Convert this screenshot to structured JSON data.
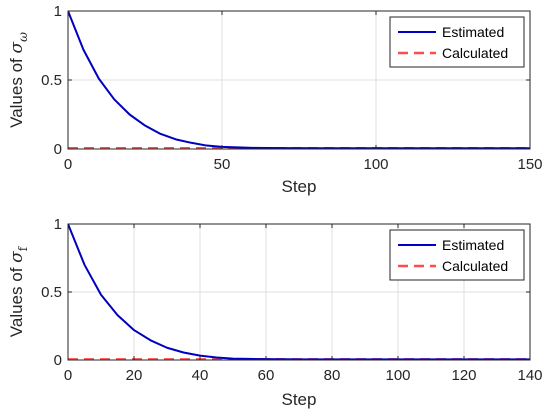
{
  "chart_data": [
    {
      "type": "line",
      "xlabel": "Step",
      "ylabel": {
        "prefix": "Values of ",
        "symbol": "σ",
        "subscript": "ω"
      },
      "xlim": [
        0,
        150
      ],
      "ylim": [
        0,
        1
      ],
      "xticks": [
        0,
        50,
        100,
        150
      ],
      "yticks": [
        0,
        0.5,
        1
      ],
      "xtick_labels": [
        "0",
        "50",
        "100",
        "150"
      ],
      "ytick_labels": [
        "0",
        "0.5",
        "1"
      ],
      "grid": true,
      "legend_position": "top-right",
      "series": [
        {
          "name": "Estimated",
          "style": "solid",
          "color": "#0000c0",
          "x": [
            0,
            5,
            10,
            15,
            20,
            25,
            30,
            35,
            40,
            45,
            50,
            60,
            70,
            80,
            90,
            100,
            110,
            120,
            130,
            140,
            150
          ],
          "y": [
            1.0,
            0.72,
            0.51,
            0.36,
            0.25,
            0.17,
            0.11,
            0.07,
            0.045,
            0.025,
            0.015,
            0.008,
            0.006,
            0.005,
            0.005,
            0.005,
            0.005,
            0.005,
            0.005,
            0.005,
            0.005
          ]
        },
        {
          "name": "Calculated",
          "style": "dashed",
          "color": "#ff4d4d",
          "x": [
            0,
            150
          ],
          "y": [
            0.005,
            0.005
          ]
        }
      ]
    },
    {
      "type": "line",
      "xlabel": "Step",
      "ylabel": {
        "prefix": "Values of ",
        "symbol": "σ",
        "subscript": "f"
      },
      "xlim": [
        0,
        140
      ],
      "ylim": [
        0,
        1
      ],
      "xticks": [
        0,
        20,
        40,
        60,
        80,
        100,
        120,
        140
      ],
      "yticks": [
        0,
        0.5,
        1
      ],
      "xtick_labels": [
        "0",
        "20",
        "40",
        "60",
        "80",
        "100",
        "120",
        "140"
      ],
      "ytick_labels": [
        "0",
        "0.5",
        "1"
      ],
      "grid": true,
      "legend_position": "top-right",
      "series": [
        {
          "name": "Estimated",
          "style": "solid",
          "color": "#0000c0",
          "x": [
            0,
            5,
            10,
            15,
            20,
            25,
            30,
            35,
            40,
            45,
            50,
            60,
            70,
            80,
            90,
            100,
            110,
            120,
            130,
            140
          ],
          "y": [
            1.0,
            0.7,
            0.48,
            0.33,
            0.22,
            0.145,
            0.09,
            0.055,
            0.032,
            0.018,
            0.01,
            0.006,
            0.005,
            0.005,
            0.005,
            0.005,
            0.005,
            0.005,
            0.005,
            0.005
          ]
        },
        {
          "name": "Calculated",
          "style": "dashed",
          "color": "#ff4d4d",
          "x": [
            0,
            140
          ],
          "y": [
            0.005,
            0.005
          ]
        }
      ]
    }
  ]
}
